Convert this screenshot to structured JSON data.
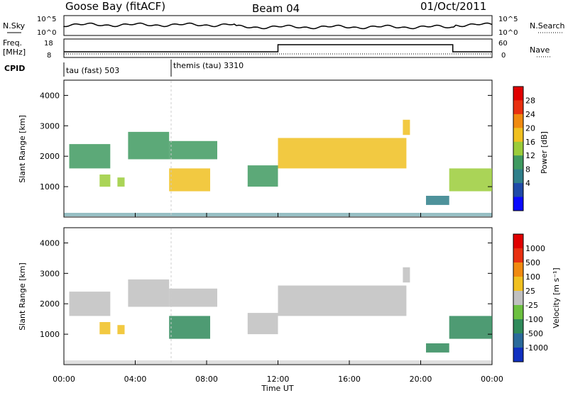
{
  "header": {
    "station": "Goose Bay (fitACF)",
    "beam": "Beam 04",
    "date": "01/Oct/2011"
  },
  "nsky_panel": {
    "left_label": "N.Sky",
    "right_label": "N.Search",
    "ticks": [
      "10^5",
      "10^0"
    ]
  },
  "freq_panel": {
    "left_label": "Freq.",
    "left_unit": "[MHz]",
    "left_ticks": [
      "18",
      "8"
    ],
    "right_label": "Nave",
    "right_ticks": [
      "60",
      "0"
    ]
  },
  "cpid": {
    "label": "CPID",
    "modes": [
      {
        "name": "tau (fast) 503",
        "start_hour": 0,
        "end_hour": 6
      },
      {
        "name": "themis (tau) 3310",
        "start_hour": 6,
        "end_hour": 24
      }
    ]
  },
  "x_axis": {
    "label": "Time UT",
    "ticks": [
      "00:00",
      "04:00",
      "08:00",
      "12:00",
      "16:00",
      "20:00",
      "00:00"
    ],
    "range_hours": [
      0,
      24
    ]
  },
  "chart_data": [
    {
      "type": "heatmap",
      "quantity": "Power",
      "ylabel": "Slant Range [km]",
      "ylim": [
        0,
        4500
      ],
      "yticks": [
        "1000",
        "2000",
        "3000",
        "4000"
      ],
      "colorbar": {
        "label": "Power [dB]",
        "ticks": [
          "28",
          "24",
          "20",
          "16",
          "12",
          "8",
          "4"
        ],
        "colors": [
          "#0a0aff",
          "#1f4aa8",
          "#2f7f8a",
          "#3f9a60",
          "#9bcc3a",
          "#f0c020",
          "#f08a10",
          "#e83010",
          "#e00000"
        ]
      },
      "regions": [
        {
          "t0": 0.3,
          "t1": 2.6,
          "r0": 1600,
          "r1": 2400,
          "level": 12
        },
        {
          "t0": 2.0,
          "t1": 2.6,
          "r0": 1000,
          "r1": 1400,
          "level": 16
        },
        {
          "t0": 3.0,
          "t1": 3.4,
          "r0": 1000,
          "r1": 1300,
          "level": 14
        },
        {
          "t0": 3.6,
          "t1": 5.9,
          "r0": 1900,
          "r1": 2800,
          "level": 12
        },
        {
          "t0": 5.9,
          "t1": 8.2,
          "r0": 850,
          "r1": 1600,
          "level": 20
        },
        {
          "t0": 5.9,
          "t1": 8.6,
          "r0": 1900,
          "r1": 2500,
          "level": 10
        },
        {
          "t0": 10.3,
          "t1": 12.0,
          "r0": 1000,
          "r1": 1700,
          "level": 12
        },
        {
          "t0": 12.0,
          "t1": 19.2,
          "r0": 1600,
          "r1": 2600,
          "level": 18
        },
        {
          "t0": 19.0,
          "t1": 19.4,
          "r0": 2700,
          "r1": 3200,
          "level": 18
        },
        {
          "t0": 20.3,
          "t1": 21.6,
          "r0": 400,
          "r1": 700,
          "level": 8
        },
        {
          "t0": 21.6,
          "t1": 24.0,
          "r0": 850,
          "r1": 1600,
          "level": 14
        }
      ]
    },
    {
      "type": "heatmap",
      "quantity": "Velocity",
      "ylabel": "Slant Range [km]",
      "ylim": [
        0,
        4500
      ],
      "yticks": [
        "1000",
        "2000",
        "3000",
        "4000"
      ],
      "colorbar": {
        "label": "Velocity [m s⁻¹]",
        "ticks": [
          "1000",
          "500",
          "100",
          "25",
          "-25",
          "-100",
          "-500",
          "-1000"
        ],
        "colors": [
          "#1030c0",
          "#2a6a9a",
          "#2f8a5a",
          "#6cc040",
          "#c0c0c0",
          "#f0c020",
          "#f08a10",
          "#e83010",
          "#e00000"
        ]
      },
      "regions": [
        {
          "t0": 0.3,
          "t1": 2.6,
          "r0": 1600,
          "r1": 2400,
          "level": 0
        },
        {
          "t0": 2.0,
          "t1": 2.6,
          "r0": 1000,
          "r1": 1400,
          "level": 200
        },
        {
          "t0": 3.0,
          "t1": 3.4,
          "r0": 1000,
          "r1": 1300,
          "level": 150
        },
        {
          "t0": 3.6,
          "t1": 5.9,
          "r0": 1900,
          "r1": 2800,
          "level": 0
        },
        {
          "t0": 5.9,
          "t1": 8.2,
          "r0": 850,
          "r1": 1600,
          "level": -300
        },
        {
          "t0": 5.9,
          "t1": 8.6,
          "r0": 1900,
          "r1": 2500,
          "level": 0
        },
        {
          "t0": 10.3,
          "t1": 12.0,
          "r0": 1000,
          "r1": 1700,
          "level": 0
        },
        {
          "t0": 12.0,
          "t1": 19.2,
          "r0": 1600,
          "r1": 2600,
          "level": 0
        },
        {
          "t0": 19.0,
          "t1": 19.4,
          "r0": 2700,
          "r1": 3200,
          "level": 0
        },
        {
          "t0": 20.3,
          "t1": 21.6,
          "r0": 400,
          "r1": 700,
          "level": -200
        },
        {
          "t0": 21.6,
          "t1": 24.0,
          "r0": 850,
          "r1": 1600,
          "level": -300
        }
      ]
    }
  ]
}
